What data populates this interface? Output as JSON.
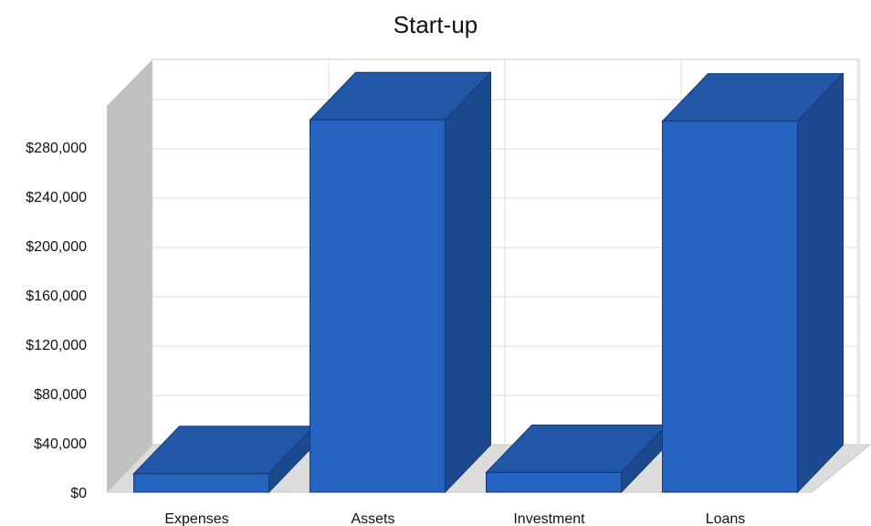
{
  "chart_data": {
    "type": "bar",
    "title": "Start-up",
    "categories": [
      "Expenses",
      "Assets",
      "Investment",
      "Loans"
    ],
    "values": [
      15000,
      302000,
      16000,
      301000
    ],
    "y_ticks": [
      "$0",
      "$40,000",
      "$80,000",
      "$120,000",
      "$160,000",
      "$200,000",
      "$240,000",
      "$280,000"
    ],
    "ylim": [
      0,
      320000
    ],
    "grid": true,
    "colors": {
      "front": "#2563c0",
      "top": "#2257a8",
      "side": "#1d4a8f",
      "wall": "#c0c0c0",
      "floor": "#dcdcdc",
      "grid": "#dcdcdc"
    }
  }
}
